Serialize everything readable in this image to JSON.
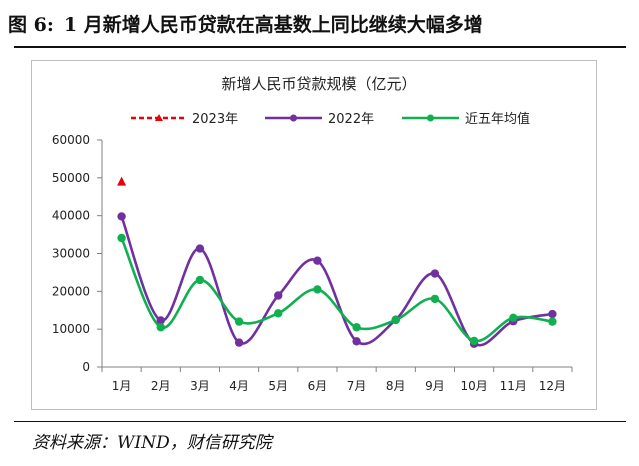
{
  "figure": {
    "number": "图 6:",
    "title": "1 月新增人民币贷款在高基数上同比继续大幅多增"
  },
  "source": "资料来源：WIND，财信研究院",
  "colors": {
    "s2023": "#e8000b",
    "s2022": "#7030a0",
    "avg5": "#10b050",
    "axis": "#808080",
    "text": "#222222"
  },
  "chart_data": {
    "type": "line",
    "title": "新增人民币贷款规模（亿元）",
    "categories": [
      "1月",
      "2月",
      "3月",
      "4月",
      "5月",
      "6月",
      "7月",
      "8月",
      "9月",
      "10月",
      "11月",
      "12月"
    ],
    "ylim": [
      0,
      60000
    ],
    "yticks": [
      0,
      10000,
      20000,
      30000,
      40000,
      50000,
      60000
    ],
    "grid": false,
    "legend_position": "top",
    "series": [
      {
        "name": "2023年",
        "values": [
          49000,
          null,
          null,
          null,
          null,
          null,
          null,
          null,
          null,
          null,
          null,
          null
        ]
      },
      {
        "name": "2022年",
        "values": [
          39800,
          12300,
          31300,
          6450,
          18900,
          28100,
          6790,
          12500,
          24700,
          6150,
          12100,
          14000
        ]
      },
      {
        "name": "近五年均值",
        "values": [
          34100,
          10500,
          23000,
          12000,
          14200,
          20500,
          10500,
          12400,
          18000,
          6900,
          13000,
          12000
        ]
      }
    ]
  }
}
